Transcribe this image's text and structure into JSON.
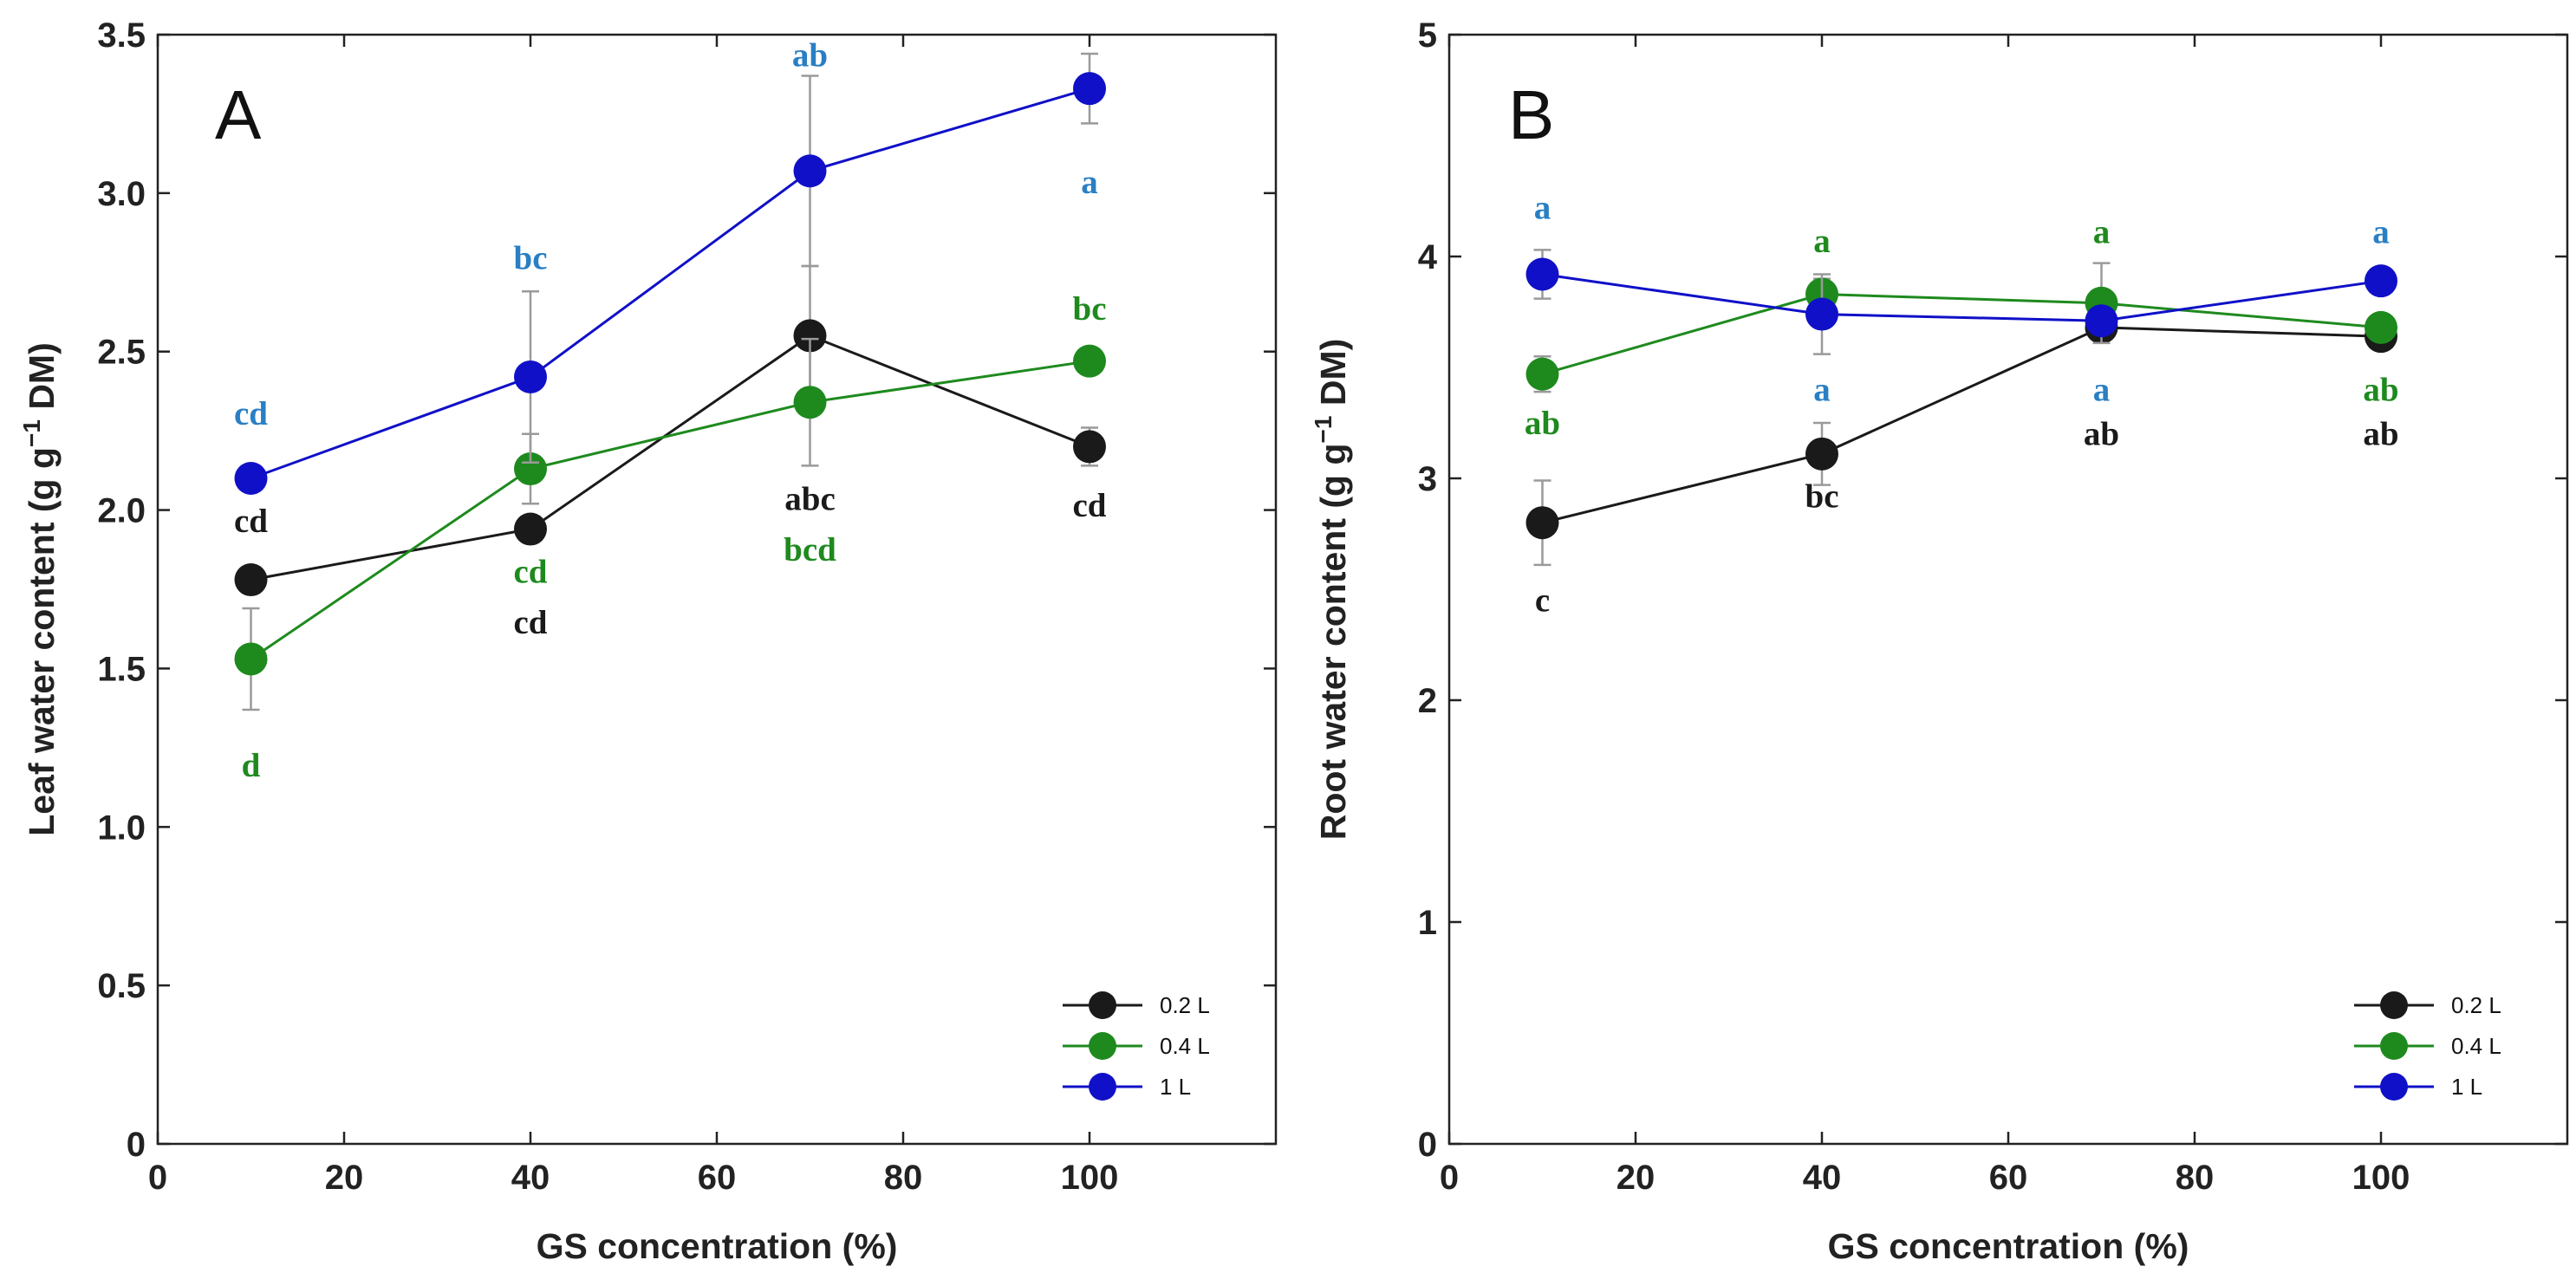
{
  "colors": {
    "s02": "#1a1a1a",
    "s04": "#1e8a1e",
    "s1": "#1010c8",
    "sig_blue": "#2a7fc4",
    "errorbar": "#9a9a9a"
  },
  "chart_data": [
    {
      "type": "line",
      "panel_letter": "A",
      "title": "",
      "xlabel": "GS concentration (%)",
      "ylabel": "Leaf water content (g g",
      "ylabel_sup": "−1",
      "ylabel_end": " DM)",
      "xlim": [
        0,
        120
      ],
      "ylim": [
        0,
        3.5
      ],
      "xticks": [
        0,
        20,
        40,
        60,
        80,
        100
      ],
      "xtick_labels": [
        "0",
        "20",
        "40",
        "60",
        "80",
        "100"
      ],
      "yticks": [
        0,
        0.5,
        1.0,
        1.5,
        2.0,
        2.5,
        3.0,
        3.5
      ],
      "ytick_labels": [
        "0",
        "0.5",
        "1.0",
        "1.5",
        "2.0",
        "2.5",
        "3.0",
        "3.5"
      ],
      "legend_position": "bottom-right",
      "series": [
        {
          "name": "0.2 L",
          "color_key": "s02",
          "x": [
            10,
            40,
            70,
            100
          ],
          "y": [
            1.78,
            1.94,
            2.55,
            2.2
          ],
          "err": [
            0.03,
            0.03,
            0.22,
            0.06
          ]
        },
        {
          "name": "0.4 L",
          "color_key": "s04",
          "x": [
            10,
            40,
            70,
            100
          ],
          "y": [
            1.53,
            2.13,
            2.34,
            2.47
          ],
          "err": [
            0.16,
            0.11,
            0.2,
            0.03
          ]
        },
        {
          "name": "1 L",
          "color_key": "s1",
          "x": [
            10,
            40,
            70,
            100
          ],
          "y": [
            2.1,
            2.42,
            3.07,
            3.33
          ],
          "err": [
            0.02,
            0.27,
            0.3,
            0.11
          ]
        }
      ],
      "annotations": [
        {
          "text": "cd",
          "x": 10,
          "y": 2.27,
          "color_key": "sig_blue"
        },
        {
          "text": "cd",
          "x": 10,
          "y": 1.93,
          "color_key": "s02"
        },
        {
          "text": "d",
          "x": 10,
          "y": 1.16,
          "color_key": "s04"
        },
        {
          "text": "bc",
          "x": 40,
          "y": 2.76,
          "color_key": "sig_blue"
        },
        {
          "text": "cd",
          "x": 40,
          "y": 1.77,
          "color_key": "s04"
        },
        {
          "text": "cd",
          "x": 40,
          "y": 1.61,
          "color_key": "s02"
        },
        {
          "text": "ab",
          "x": 70,
          "y": 3.4,
          "color_key": "sig_blue"
        },
        {
          "text": "abc",
          "x": 70,
          "y": 2.0,
          "color_key": "s02"
        },
        {
          "text": "bcd",
          "x": 70,
          "y": 1.84,
          "color_key": "s04"
        },
        {
          "text": "a",
          "x": 100,
          "y": 3.0,
          "color_key": "sig_blue"
        },
        {
          "text": "bc",
          "x": 100,
          "y": 2.6,
          "color_key": "s04"
        },
        {
          "text": "cd",
          "x": 100,
          "y": 1.98,
          "color_key": "s02"
        }
      ]
    },
    {
      "type": "line",
      "panel_letter": "B",
      "title": "",
      "xlabel": "GS concentration (%)",
      "ylabel": "Root water content (g g",
      "ylabel_sup": "−1",
      "ylabel_end": " DM)",
      "xlim": [
        0,
        120
      ],
      "ylim": [
        0,
        5
      ],
      "xticks": [
        0,
        20,
        40,
        60,
        80,
        100
      ],
      "xtick_labels": [
        "0",
        "20",
        "40",
        "60",
        "80",
        "100"
      ],
      "yticks": [
        0,
        1,
        2,
        3,
        4,
        5
      ],
      "ytick_labels": [
        "0",
        "1",
        "2",
        "3",
        "4",
        "5"
      ],
      "legend_position": "bottom-right",
      "series": [
        {
          "name": "0.2 L",
          "color_key": "s02",
          "x": [
            10,
            40,
            70,
            100
          ],
          "y": [
            2.8,
            3.11,
            3.68,
            3.64
          ],
          "err": [
            0.19,
            0.14,
            0.03,
            0.02
          ]
        },
        {
          "name": "0.4 L",
          "color_key": "s04",
          "x": [
            10,
            40,
            70,
            100
          ],
          "y": [
            3.47,
            3.83,
            3.79,
            3.68
          ],
          "err": [
            0.08,
            0.07,
            0.18,
            0.03
          ]
        },
        {
          "name": "1 L",
          "color_key": "s1",
          "x": [
            10,
            40,
            70,
            100
          ],
          "y": [
            3.92,
            3.74,
            3.71,
            3.89
          ],
          "err": [
            0.11,
            0.18,
            0.03,
            0.02
          ]
        }
      ],
      "annotations": [
        {
          "text": "a",
          "x": 10,
          "y": 4.17,
          "color_key": "sig_blue"
        },
        {
          "text": "ab",
          "x": 10,
          "y": 3.2,
          "color_key": "s04"
        },
        {
          "text": "c",
          "x": 10,
          "y": 2.4,
          "color_key": "s02"
        },
        {
          "text": "a",
          "x": 40,
          "y": 4.02,
          "color_key": "s04"
        },
        {
          "text": "a",
          "x": 40,
          "y": 3.35,
          "color_key": "sig_blue"
        },
        {
          "text": "bc",
          "x": 40,
          "y": 2.87,
          "color_key": "s02"
        },
        {
          "text": "a",
          "x": 70,
          "y": 4.06,
          "color_key": "s04"
        },
        {
          "text": "a",
          "x": 70,
          "y": 3.35,
          "color_key": "sig_blue"
        },
        {
          "text": "ab",
          "x": 70,
          "y": 3.15,
          "color_key": "s02"
        },
        {
          "text": "a",
          "x": 100,
          "y": 4.06,
          "color_key": "sig_blue"
        },
        {
          "text": "ab",
          "x": 100,
          "y": 3.35,
          "color_key": "s04"
        },
        {
          "text": "ab",
          "x": 100,
          "y": 3.15,
          "color_key": "s02"
        }
      ]
    }
  ]
}
